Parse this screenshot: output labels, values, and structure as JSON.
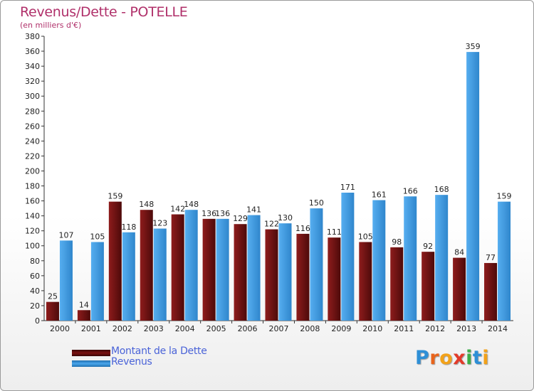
{
  "title": "Revenus/Dette - POTELLE",
  "subtitle": "(en milliers d'€)",
  "chart_data": {
    "type": "bar",
    "categories": [
      "2000",
      "2001",
      "2002",
      "2003",
      "2004",
      "2005",
      "2006",
      "2007",
      "2008",
      "2009",
      "2010",
      "2011",
      "2012",
      "2013",
      "2014"
    ],
    "series": [
      {
        "name": "Montant de la Dette",
        "color": "#8b1a1a",
        "values": [
          25,
          14,
          159,
          148,
          142,
          136,
          129,
          122,
          116,
          111,
          105,
          98,
          92,
          84,
          77
        ]
      },
      {
        "name": "Revenus",
        "color": "#3a95dc",
        "values": [
          107,
          105,
          118,
          123,
          148,
          136,
          141,
          130,
          150,
          171,
          161,
          166,
          168,
          359,
          159
        ]
      }
    ],
    "ylim": [
      0,
      380
    ],
    "ytick_step": 20,
    "grid": false,
    "legend_position": "bottom-left"
  },
  "legend": [
    {
      "label": "Montant de la Dette",
      "color": "#7a1010"
    },
    {
      "label": "Revenus",
      "color": "#3a95dc"
    }
  ],
  "logo": {
    "text": "Proxiti",
    "letters": [
      {
        "char": "P",
        "color": "#2e8fd6"
      },
      {
        "char": "r",
        "color": "#e8641c"
      },
      {
        "char": "o",
        "color": "#f2a21a"
      },
      {
        "char": "x",
        "color": "#e23b2a"
      },
      {
        "char": "i",
        "color": "#3cae49"
      },
      {
        "char": "t",
        "color": "#2e8fd6"
      },
      {
        "char": "i",
        "color": "#f2a21a"
      }
    ]
  }
}
